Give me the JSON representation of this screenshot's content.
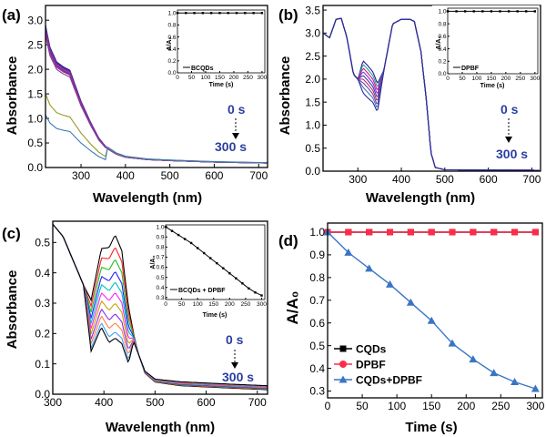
{
  "chart_data": [
    {
      "id": "a",
      "type": "line",
      "panel_label": "(a)",
      "xlabel": "Wavelength (nm)",
      "ylabel": "Absorbance",
      "xlim": [
        220,
        720
      ],
      "ylim": [
        0,
        3.3
      ],
      "xticks": [
        300,
        400,
        500,
        600,
        700
      ],
      "yticks": [
        0.0,
        0.5,
        1.0,
        1.5,
        2.0,
        2.5,
        3.0
      ],
      "annotation_start": "0 s",
      "annotation_end": "300 s",
      "colors": [
        "#1f1f8f",
        "#2a2a9a",
        "#c81e78",
        "#8a2be2",
        "#3b3bb0",
        "#b03060",
        "#7b3fa0",
        "#9a9a2a",
        "#3a7ab8"
      ],
      "base_curve": [
        [
          220,
          2.9
        ],
        [
          230,
          2.45
        ],
        [
          245,
          2.15
        ],
        [
          260,
          2.05
        ],
        [
          275,
          1.98
        ],
        [
          290,
          1.6
        ],
        [
          300,
          1.35
        ],
        [
          320,
          0.95
        ],
        [
          340,
          0.6
        ],
        [
          360,
          0.38
        ],
        [
          380,
          0.27
        ],
        [
          400,
          0.21
        ],
        [
          450,
          0.16
        ],
        [
          500,
          0.14
        ],
        [
          600,
          0.11
        ],
        [
          720,
          0.09
        ]
      ],
      "series_scales": [
        1.0,
        0.99,
        0.98,
        0.97,
        0.96,
        0.95,
        0.93,
        0.52,
        0.37
      ],
      "inset": {
        "type": "line",
        "xlabel": "Time (s)",
        "ylabel": "A/A₀",
        "xlim": [
          0,
          310
        ],
        "ylim": [
          0,
          1.05
        ],
        "xticks": [
          0,
          50,
          100,
          150,
          200,
          250,
          300
        ],
        "yticks": [
          0.0,
          0.2,
          0.4,
          0.6,
          0.8,
          1.0
        ],
        "legend": "BCQDs",
        "x": [
          0,
          30,
          60,
          90,
          120,
          150,
          180,
          210,
          240,
          270,
          300
        ],
        "y": [
          1,
          1,
          1,
          1,
          1,
          1,
          1,
          1,
          1,
          1,
          1
        ]
      }
    },
    {
      "id": "b",
      "type": "line",
      "panel_label": "(b)",
      "xlabel": "Wavelength (nm)",
      "ylabel": "Absorbance",
      "xlim": [
        220,
        720
      ],
      "ylim": [
        0,
        3.6
      ],
      "xticks": [
        300,
        400,
        500,
        600,
        700
      ],
      "yticks": [
        0.0,
        0.5,
        1.0,
        1.5,
        2.0,
        2.5,
        3.0,
        3.5
      ],
      "annotation_start": "0 s",
      "annotation_end": "300 s",
      "colors": [
        "#1f1f8f",
        "#2aa0a0",
        "#c81e78",
        "#8a2be2",
        "#3b3bb0",
        "#b03060",
        "#7b3fa0",
        "#3a7ab8",
        "#2a2a9a"
      ],
      "dips_310": [
        2.4,
        2.32,
        2.24,
        2.16,
        2.08,
        2.0,
        1.92,
        1.82,
        1.7
      ],
      "dips_345": [
        1.9,
        1.82,
        1.74,
        1.66,
        1.58,
        1.5,
        1.42,
        1.35,
        1.28
      ],
      "inset": {
        "type": "line",
        "xlabel": "Time (s)",
        "ylabel": "A/A₀",
        "xlim": [
          0,
          310
        ],
        "ylim": [
          0,
          1.05
        ],
        "xticks": [
          0,
          50,
          100,
          150,
          200,
          250,
          300
        ],
        "yticks": [
          0.0,
          0.2,
          0.4,
          0.6,
          0.8,
          1.0
        ],
        "legend": "DPBF",
        "x": [
          0,
          30,
          60,
          90,
          120,
          150,
          180,
          210,
          240,
          270,
          300
        ],
        "y": [
          1,
          1,
          1,
          1,
          1,
          1,
          1,
          1,
          1,
          1,
          1
        ]
      }
    },
    {
      "id": "c",
      "type": "line",
      "panel_label": "(c)",
      "xlabel": "Wavelength (nm)",
      "ylabel": "Absorbance",
      "xlim": [
        300,
        720
      ],
      "ylim": [
        0,
        0.57
      ],
      "xticks": [
        300,
        400,
        500,
        600,
        700
      ],
      "yticks": [
        0.0,
        0.1,
        0.2,
        0.3,
        0.4,
        0.5
      ],
      "annotation_start": "0 s",
      "annotation_end": "300 s",
      "colors": [
        "#000000",
        "#ff2020",
        "#20c020",
        "#2020ff",
        "#00c0c0",
        "#ff20ff",
        "#c8a000",
        "#8a2be2",
        "#ff8040",
        "#40a0ff",
        "#000000"
      ],
      "peaks": [
        0.525,
        0.485,
        0.445,
        0.405,
        0.37,
        0.335,
        0.3,
        0.265,
        0.235,
        0.205,
        0.185
      ],
      "inset": {
        "type": "line",
        "xlabel": "Time (s)",
        "ylabel": "A/A₀",
        "xlim": [
          0,
          310
        ],
        "ylim": [
          0.28,
          1.02
        ],
        "xticks": [
          0,
          50,
          100,
          150,
          200,
          250,
          300
        ],
        "yticks": [
          0.3,
          0.4,
          0.5,
          0.6,
          0.7,
          0.8,
          0.9,
          1.0
        ],
        "legend": "BCQDs + DPBF",
        "x": [
          0,
          20,
          40,
          60,
          80,
          100,
          120,
          140,
          160,
          180,
          200,
          220,
          240,
          260,
          280,
          300
        ],
        "y": [
          1.0,
          0.96,
          0.92,
          0.88,
          0.84,
          0.79,
          0.74,
          0.69,
          0.64,
          0.59,
          0.54,
          0.49,
          0.44,
          0.39,
          0.35,
          0.32
        ]
      }
    },
    {
      "id": "d",
      "type": "line",
      "panel_label": "(d)",
      "xlabel": "Time (s)",
      "ylabel": "A/A₀",
      "xlim": [
        0,
        310
      ],
      "ylim": [
        0.27,
        1.04
      ],
      "xticks": [
        0,
        50,
        100,
        150,
        200,
        250,
        300
      ],
      "yticks": [
        0.3,
        0.4,
        0.5,
        0.6,
        0.7,
        0.8,
        0.9,
        1.0
      ],
      "legend_position": "bottom-left",
      "x": [
        0,
        30,
        60,
        90,
        120,
        150,
        180,
        210,
        240,
        270,
        300
      ],
      "series": [
        {
          "name": "CQDs",
          "color": "#000000",
          "marker": "square",
          "values": [
            1,
            1,
            1,
            1,
            1,
            1,
            1,
            1,
            1,
            1,
            1
          ]
        },
        {
          "name": "DPBF",
          "color": "#ff2b4a",
          "marker": "circle",
          "values": [
            1,
            1,
            1,
            1,
            1,
            1,
            1,
            1,
            1,
            1,
            1
          ]
        },
        {
          "name": "CQDs+DPBF",
          "color": "#3a75c4",
          "marker": "triangle",
          "values": [
            1.0,
            0.91,
            0.84,
            0.77,
            0.69,
            0.61,
            0.51,
            0.44,
            0.38,
            0.34,
            0.31
          ]
        }
      ]
    }
  ]
}
